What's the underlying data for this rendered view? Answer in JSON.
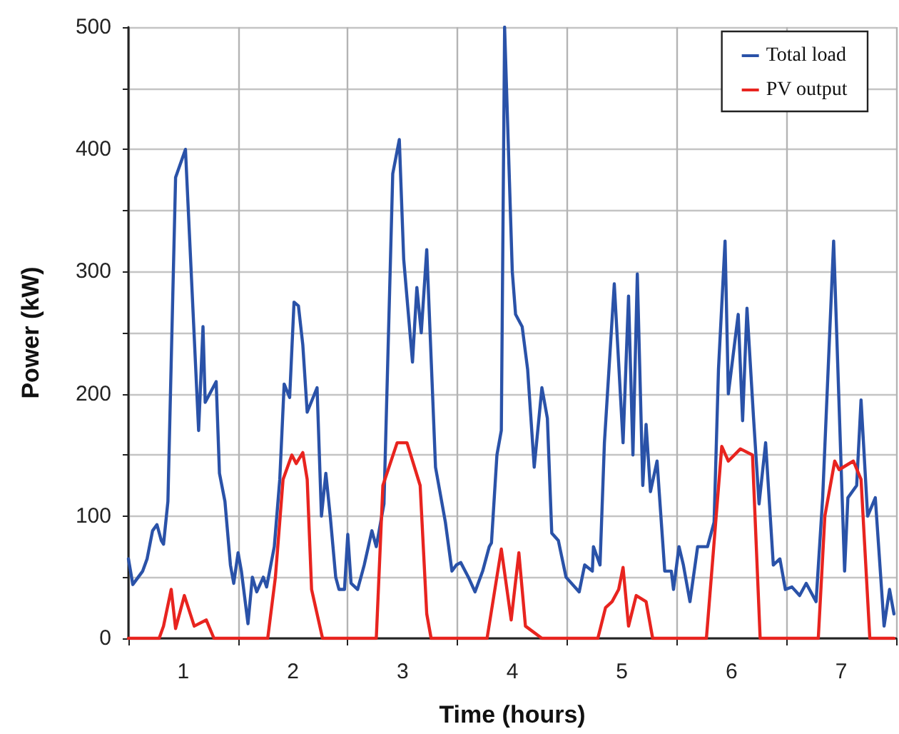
{
  "chart_data": {
    "type": "line",
    "xlabel": "Time (hours)",
    "ylabel": "Power (kW)",
    "xlim": [
      0.5,
      7.5
    ],
    "xticks": [
      {
        "value": 0.5,
        "label": null
      },
      1,
      {
        "value": 1.5,
        "label": null
      },
      2,
      {
        "value": 2.5,
        "label": null
      },
      3,
      {
        "value": 3.5,
        "label": null
      },
      4,
      {
        "value": 4.5,
        "label": null
      },
      5,
      {
        "value": 5.5,
        "label": null
      },
      6,
      {
        "value": 6.5,
        "label": null
      },
      7,
      {
        "value": 7.5,
        "label": null
      }
    ],
    "ylim": [
      0,
      500
    ],
    "yticks": [
      0,
      {
        "value": 50,
        "label": null
      },
      100,
      {
        "value": 150,
        "label": null
      },
      200,
      {
        "value": 250,
        "label": null
      },
      300,
      {
        "value": 350,
        "label": null
      },
      400,
      {
        "value": 450,
        "label": null
      },
      500
    ],
    "grid": true,
    "legend": "top right",
    "marker": "none",
    "line_style": "solid",
    "series": [
      {
        "name": "Total load",
        "color": "#2a52a8",
        "x": [
          0.5,
          0.54,
          0.63,
          0.67,
          0.72,
          0.76,
          0.8,
          0.82,
          0.86,
          0.93,
          1.02,
          1.14,
          1.18,
          1.2,
          1.3,
          1.33,
          1.38,
          1.43,
          1.46,
          1.5,
          1.53,
          1.59,
          1.63,
          1.67,
          1.73,
          1.76,
          1.83,
          1.88,
          1.92,
          1.97,
          2.01,
          2.05,
          2.09,
          2.13,
          2.22,
          2.26,
          2.3,
          2.34,
          2.39,
          2.42,
          2.47,
          2.5,
          2.53,
          2.59,
          2.65,
          2.72,
          2.76,
          2.83,
          2.91,
          2.97,
          3.01,
          3.09,
          3.13,
          3.17,
          3.22,
          3.3,
          3.39,
          3.45,
          3.49,
          3.53,
          3.6,
          3.66,
          3.73,
          3.79,
          3.81,
          3.86,
          3.9,
          3.93,
          4.0,
          4.03,
          4.09,
          4.14,
          4.2,
          4.27,
          4.32,
          4.36,
          4.42,
          4.49,
          4.61,
          4.66,
          4.73,
          4.74,
          4.8,
          4.84,
          4.93,
          5.01,
          5.06,
          5.1,
          5.14,
          5.19,
          5.22,
          5.26,
          5.32,
          5.39,
          5.45,
          5.47,
          5.52,
          5.56,
          5.62,
          5.69,
          5.78,
          5.84,
          5.88,
          5.94,
          5.97,
          6.06,
          6.1,
          6.14,
          6.2,
          6.25,
          6.31,
          6.38,
          6.44,
          6.49,
          6.55,
          6.62,
          6.68,
          6.77,
          6.83,
          6.93,
          7.03,
          7.06,
          7.14,
          7.18,
          7.24,
          7.31,
          7.39,
          7.44,
          7.48
        ],
        "values": [
          65,
          44,
          55,
          65,
          88,
          93,
          80,
          77,
          112,
          377,
          400,
          170,
          255,
          193,
          210,
          135,
          112,
          60,
          45,
          70,
          55,
          12,
          50,
          38,
          50,
          42,
          75,
          130,
          208,
          197,
          275,
          272,
          240,
          185,
          205,
          100,
          135,
          100,
          50,
          40,
          40,
          85,
          45,
          40,
          60,
          88,
          75,
          110,
          380,
          408,
          310,
          226,
          287,
          250,
          318,
          140,
          95,
          55,
          60,
          62,
          50,
          38,
          55,
          75,
          78,
          150,
          170,
          500,
          300,
          265,
          255,
          220,
          140,
          205,
          180,
          86,
          80,
          50,
          38,
          60,
          55,
          75,
          60,
          160,
          290,
          160,
          280,
          150,
          298,
          125,
          175,
          120,
          145,
          55,
          55,
          40,
          75,
          60,
          30,
          75,
          75,
          95,
          220,
          325,
          200,
          265,
          178,
          270,
          180,
          110,
          160,
          60,
          65,
          40,
          42,
          35,
          45,
          30,
          115,
          325,
          55,
          115,
          125,
          195,
          100,
          115,
          10,
          40,
          20
        ]
      },
      {
        "name": "PV output",
        "color": "#e8241f",
        "x": [
          0.5,
          0.78,
          0.82,
          0.89,
          0.93,
          1.01,
          1.1,
          1.21,
          1.28,
          1.77,
          1.84,
          1.91,
          1.99,
          2.03,
          2.09,
          2.13,
          2.17,
          2.27,
          2.76,
          2.82,
          2.95,
          3.04,
          3.16,
          3.22,
          3.26,
          3.77,
          3.9,
          3.99,
          4.06,
          4.12,
          4.27,
          4.78,
          4.85,
          4.91,
          4.97,
          5.01,
          5.06,
          5.13,
          5.22,
          5.28,
          5.77,
          5.91,
          5.97,
          6.08,
          6.19,
          6.26,
          6.79,
          6.85,
          6.94,
          6.98,
          7.11,
          7.18,
          7.26,
          7.48
        ],
        "values": [
          0,
          0,
          10,
          40,
          8,
          35,
          10,
          15,
          0,
          0,
          50,
          130,
          150,
          143,
          152,
          130,
          40,
          0,
          0,
          125,
          160,
          160,
          125,
          20,
          0,
          0,
          73,
          15,
          70,
          10,
          0,
          0,
          25,
          30,
          40,
          58,
          10,
          35,
          30,
          0,
          0,
          157,
          145,
          155,
          150,
          0,
          0,
          100,
          145,
          138,
          145,
          130,
          0,
          0
        ]
      }
    ]
  }
}
